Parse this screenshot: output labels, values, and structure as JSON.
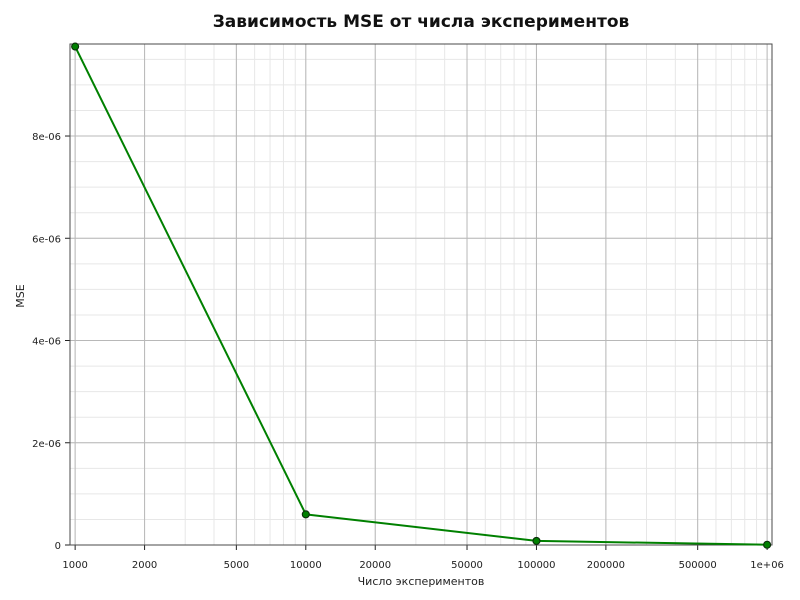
{
  "chart_data": {
    "type": "line",
    "title": "Зависимость MSE от числа экспериментов",
    "xlabel": "Число экспериментов",
    "ylabel": "MSE",
    "x_scale": "log",
    "y_scale": "linear",
    "xlim": [
      950,
      1050000
    ],
    "ylim": [
      0,
      9.8e-06
    ],
    "grid": true,
    "minor_grid": true,
    "legend": "none",
    "x_ticks": [
      {
        "value": 1000,
        "label": "1000"
      },
      {
        "value": 2000,
        "label": "2000"
      },
      {
        "value": 5000,
        "label": "5000"
      },
      {
        "value": 10000,
        "label": "10000"
      },
      {
        "value": 20000,
        "label": "20000"
      },
      {
        "value": 50000,
        "label": "50000"
      },
      {
        "value": 100000,
        "label": "100000"
      },
      {
        "value": 200000,
        "label": "200000"
      },
      {
        "value": 500000,
        "label": "500000"
      },
      {
        "value": 1000000,
        "label": "1e+06"
      }
    ],
    "y_ticks": [
      {
        "value": 0,
        "label": "0"
      },
      {
        "value": 2e-06,
        "label": "2e-06"
      },
      {
        "value": 4e-06,
        "label": "4e-06"
      },
      {
        "value": 6e-06,
        "label": "6e-06"
      },
      {
        "value": 8e-06,
        "label": "8e-06"
      }
    ],
    "series": [
      {
        "x": [
          1000,
          10000,
          100000,
          1000000
        ],
        "y": [
          9.75e-06,
          6e-07,
          8e-08,
          5e-09
        ],
        "color": "#008000",
        "marker": "circle"
      }
    ]
  }
}
